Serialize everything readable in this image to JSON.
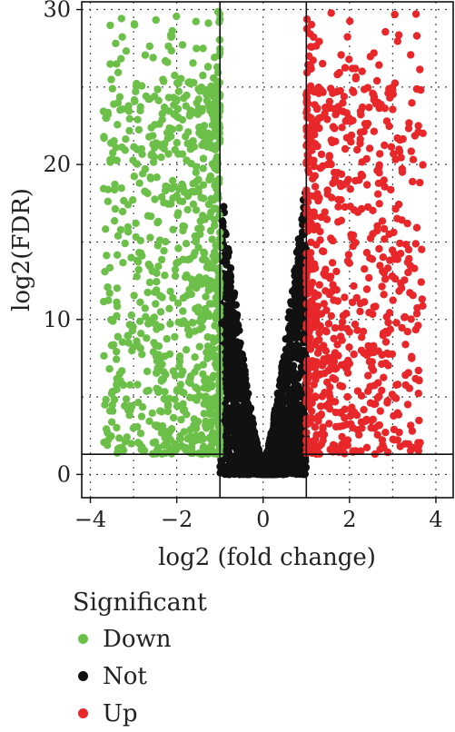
{
  "chart_data": {
    "type": "scatter",
    "title": "",
    "xlabel": "log2 (fold change)",
    "ylabel": "log2(FDR)",
    "xlim": [
      -4.2,
      4.4
    ],
    "ylim": [
      -1.5,
      30.5
    ],
    "x_ticks": [
      -4,
      -2,
      0,
      2,
      4
    ],
    "x_tick_labels": [
      "−4",
      "−2",
      "0",
      "2",
      "4"
    ],
    "y_ticks": [
      0,
      10,
      20,
      30
    ],
    "y_tick_labels": [
      "0",
      "10",
      "20",
      "30"
    ],
    "grid": "dotted",
    "threshold_lines": {
      "x": [
        -1,
        1
      ],
      "y": [
        1.3
      ]
    },
    "legend_title": "Significant",
    "legend_position": "bottom-left",
    "series": [
      {
        "name": "Down",
        "color": "#6cc04a",
        "x_range": [
          -3.9,
          -1.0
        ],
        "y_range": [
          1.3,
          30
        ]
      },
      {
        "name": "Not",
        "color": "#111111",
        "x_range": [
          -1.0,
          1.0
        ],
        "y_range": [
          0,
          19
        ]
      },
      {
        "name": "Up",
        "color": "#e8272b",
        "x_range": [
          1.0,
          3.6
        ],
        "y_range": [
          1.3,
          30
        ]
      }
    ]
  }
}
